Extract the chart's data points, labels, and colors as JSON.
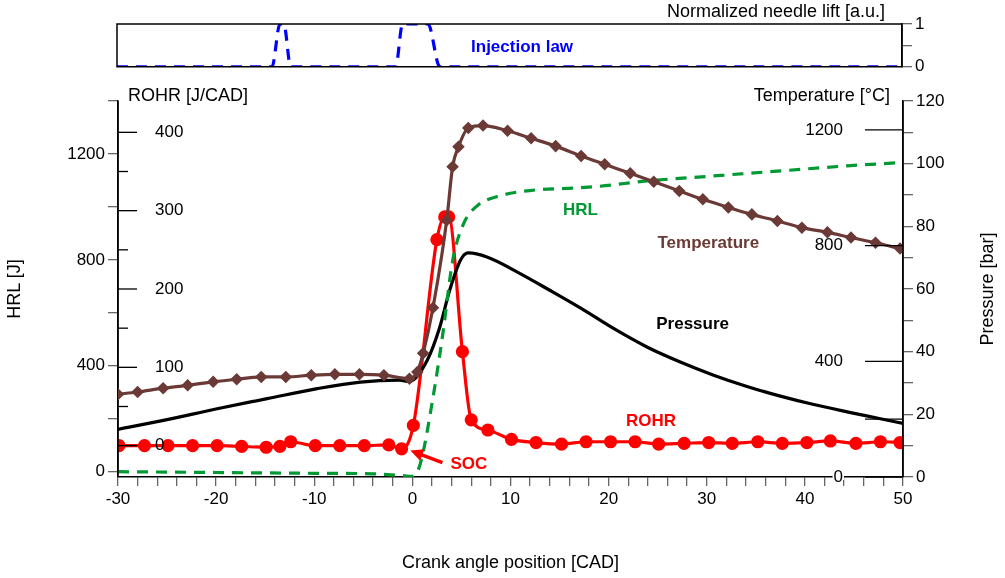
{
  "chart_data": [
    {
      "type": "line",
      "ylabel": "Normalized needle lift [a.u.]",
      "xlim": [
        -30,
        50
      ],
      "ylim": [
        0,
        1
      ],
      "yticks": [
        0,
        {
          "value": 0.5,
          "label": null
        },
        1
      ],
      "tick_labels": "y",
      "legend": false,
      "grid": false,
      "series": [
        {
          "name": "Injection law",
          "color": "#0000ff",
          "line_style": "dashed",
          "marker": "none",
          "x": [
            -30,
            -14.2,
            -13.4,
            -13,
            -12.3,
            -1.6,
            -0.9,
            1.7,
            2.9,
            50
          ],
          "values": [
            0,
            0,
            1,
            1,
            0,
            0,
            1,
            1,
            0,
            0
          ]
        }
      ]
    },
    {
      "type": "line",
      "xlabel": "Crank angle position [CAD]",
      "ylabel": "HRL [J]",
      "y2label": "Pressure [bar]",
      "y3label": "ROHR [J/CAD]",
      "legend": false,
      "grid": false,
      "xlim": [
        -30,
        50
      ],
      "xticks": [
        -30,
        {
          "value": -28,
          "label": null
        },
        {
          "value": -26,
          "label": null
        },
        {
          "value": -24,
          "label": null
        },
        {
          "value": -22,
          "label": null
        },
        -20,
        {
          "value": -18,
          "label": null
        },
        {
          "value": -16,
          "label": null
        },
        {
          "value": -14,
          "label": null
        },
        {
          "value": -12,
          "label": null
        },
        -10,
        {
          "value": -8,
          "label": null
        },
        {
          "value": -6,
          "label": null
        },
        {
          "value": -4,
          "label": null
        },
        {
          "value": -2,
          "label": null
        },
        0,
        {
          "value": 2,
          "label": null
        },
        {
          "value": 4,
          "label": null
        },
        {
          "value": 6,
          "label": null
        },
        {
          "value": 8,
          "label": null
        },
        10,
        {
          "value": 12,
          "label": null
        },
        {
          "value": 14,
          "label": null
        },
        {
          "value": 16,
          "label": null
        },
        {
          "value": 18,
          "label": null
        },
        20,
        {
          "value": 22,
          "label": null
        },
        {
          "value": 24,
          "label": null
        },
        {
          "value": 26,
          "label": null
        },
        {
          "value": 28,
          "label": null
        },
        30,
        {
          "value": 32,
          "label": null
        },
        {
          "value": 34,
          "label": null
        },
        {
          "value": 36,
          "label": null
        },
        {
          "value": 38,
          "label": null
        },
        40,
        {
          "value": 42,
          "label": null
        },
        {
          "value": 44,
          "label": null
        },
        {
          "value": 46,
          "label": null
        },
        {
          "value": 48,
          "label": null
        },
        50
      ],
      "ylim": [
        -20,
        1400
      ],
      "yticks": [
        0,
        {
          "value": 200,
          "label": null
        },
        400,
        {
          "value": 600,
          "label": null
        },
        800,
        {
          "value": 1000,
          "label": null
        },
        1200,
        {
          "value": 1400,
          "label": null
        }
      ],
      "y2lim": [
        0,
        120
      ],
      "y2ticks": [
        0,
        {
          "value": 10,
          "label": null
        },
        20,
        {
          "value": 30,
          "label": null
        },
        40,
        {
          "value": 50,
          "label": null
        },
        60,
        {
          "value": 70,
          "label": null
        },
        80,
        {
          "value": 90,
          "label": null
        },
        100,
        {
          "value": 110,
          "label": null
        },
        120
      ],
      "y3lim": [
        -40,
        440
      ],
      "y3ticks": [
        0,
        {
          "value": 50,
          "label": null
        },
        100,
        {
          "value": 150,
          "label": null
        },
        200,
        {
          "value": 250,
          "label": null
        },
        300,
        {
          "value": 350,
          "label": null
        },
        400
      ],
      "annotations": [
        {
          "text": "SOC",
          "x": -0.2,
          "y": 80
        }
      ],
      "series": [
        {
          "name": "HRL",
          "color": "#009933",
          "line_style": "dashed",
          "marker": "none",
          "x": [
            -30,
            -20,
            -10,
            -4,
            -1,
            0,
            0.8,
            2.1,
            3.1,
            4.1,
            5.2,
            6.6,
            8.9,
            12.3,
            15.8,
            19.1,
            23.9,
            30.7,
            37.5,
            44.3,
            50
          ],
          "values": [
            0,
            -3,
            -6,
            -8,
            -15,
            -18,
            29,
            280,
            520,
            796,
            935,
            1004,
            1042,
            1063,
            1070,
            1078,
            1098,
            1117,
            1136,
            1155,
            1168
          ]
        },
        {
          "name": "Pressure",
          "color": "#000000",
          "line_style": "solid",
          "marker": "none",
          "axis": "y2",
          "x": [
            -30,
            -25,
            -19.9,
            -14.8,
            -9.7,
            -5.3,
            -1.3,
            -0.3,
            1.5,
            2.8,
            3.8,
            4.9,
            5.7,
            7.6,
            10.7,
            14,
            17.2,
            20.5,
            23.9,
            27.3,
            30.7,
            34.1,
            37.5,
            40.8,
            44.3,
            47.7,
            50
          ],
          "values": [
            15.2,
            18.3,
            21.8,
            25,
            28.2,
            30.3,
            30.9,
            30.5,
            37.2,
            47.9,
            59.6,
            69.2,
            71.5,
            70.2,
            65.4,
            59.6,
            53.8,
            47.4,
            41.5,
            36.7,
            32.5,
            28.9,
            25.8,
            23.2,
            20.8,
            18.6,
            17.1
          ]
        },
        {
          "name": "ROHR",
          "color": "#ff0000",
          "line_style": "solid",
          "marker": "circle",
          "axis": "y3",
          "x": [
            -29.9,
            -27.3,
            -24.9,
            -22.4,
            -19.9,
            -17.4,
            -14.9,
            -13.5,
            -12.4,
            -9.9,
            -7.4,
            -4.9,
            -2.4,
            -1.1,
            0.1,
            2.5,
            3.3,
            3.7,
            5.1,
            6,
            7.7,
            10.1,
            12.6,
            15.2,
            17.7,
            20.2,
            22.7,
            25.1,
            27.7,
            30.2,
            32.6,
            35.2,
            37.7,
            40.2,
            42.6,
            45.2,
            47.7,
            49.7
          ],
          "values": [
            0,
            0,
            0,
            0,
            0,
            -1,
            -2,
            -1,
            5,
            0,
            0,
            0,
            1,
            -4,
            26,
            263,
            292,
            292,
            120,
            33,
            20,
            8,
            4,
            2,
            5,
            5,
            5,
            2,
            3,
            4,
            3,
            5,
            3,
            4,
            6,
            3,
            5,
            4
          ]
        }
      ]
    },
    {
      "type": "line",
      "ylabel": "Temperature [°C]",
      "tick_labels": "y",
      "legend": false,
      "grid": false,
      "xlim": [
        -30,
        50
      ],
      "ylim": [
        0,
        1300
      ],
      "yticks": [
        0,
        {
          "value": 200,
          "label": null
        },
        400,
        800,
        1200
      ],
      "series": [
        {
          "name": "Temperature",
          "color": "#6b3a36",
          "line_style": "solid",
          "marker": "diamond",
          "x": [
            -30,
            -28,
            -25.4,
            -22.9,
            -20.3,
            -17.9,
            -15.4,
            -12.9,
            -10.3,
            -7.9,
            -5.4,
            -2.9,
            -0.3,
            0.5,
            1.1,
            2.1,
            3.5,
            4.1,
            4.7,
            5.7,
            7.2,
            9.7,
            12.1,
            14.6,
            17.2,
            19.6,
            22.2,
            24.6,
            27.2,
            29.6,
            32.2,
            34.6,
            37.2,
            39.7,
            42.3,
            44.7,
            47.2,
            49.7
          ],
          "values": [
            286,
            294,
            307,
            317,
            329,
            338,
            346,
            346,
            352,
            355,
            355,
            352,
            340,
            363,
            428,
            585,
            888,
            1073,
            1142,
            1207,
            1215,
            1197,
            1171,
            1144,
            1110,
            1081,
            1050,
            1021,
            989,
            960,
            932,
            908,
            885,
            862,
            846,
            828,
            810,
            790
          ]
        }
      ]
    }
  ]
}
